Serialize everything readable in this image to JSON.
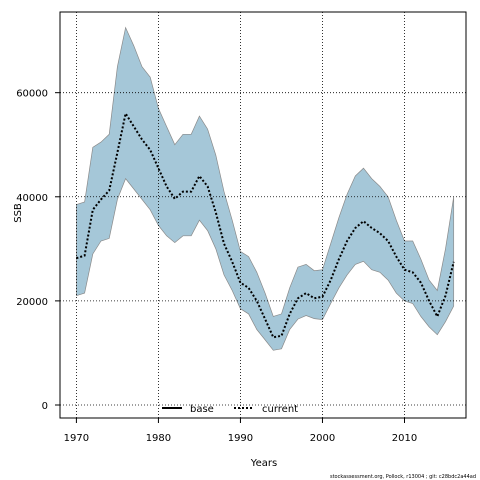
{
  "chart_data": {
    "type": "line",
    "xlabel": "Years",
    "ylabel": "SSB",
    "xlim": [
      1968,
      2017.5
    ],
    "ylim": [
      -2500,
      75500
    ],
    "x_ticks": [
      1970,
      1980,
      1990,
      2000,
      2010
    ],
    "y_ticks": [
      0,
      20000,
      40000,
      60000
    ],
    "grid": true,
    "legend_position": "bottom-center",
    "x": [
      1970,
      1971,
      1972,
      1973,
      1974,
      1975,
      1976,
      1977,
      1978,
      1979,
      1980,
      1981,
      1982,
      1983,
      1984,
      1985,
      1986,
      1987,
      1988,
      1989,
      1990,
      1991,
      1992,
      1993,
      1994,
      1995,
      1996,
      1997,
      1998,
      1999,
      2000,
      2001,
      2002,
      2003,
      2004,
      2005,
      2006,
      2007,
      2008,
      2009,
      2010,
      2011,
      2012,
      2013,
      2014,
      2015,
      2016
    ],
    "series": [
      {
        "name": "base",
        "style": "solid",
        "color": "#000000",
        "values": null
      },
      {
        "name": "current",
        "style": "dotted",
        "color": "#000000",
        "values": [
          28200,
          28700,
          37500,
          39500,
          41200,
          48500,
          56000,
          53500,
          51000,
          49000,
          45500,
          42000,
          39600,
          41000,
          41000,
          44000,
          42000,
          37000,
          31000,
          27500,
          23500,
          22500,
          20000,
          16500,
          13000,
          13300,
          17500,
          20500,
          21500,
          20500,
          20800,
          24000,
          28000,
          31500,
          34000,
          35300,
          34000,
          33000,
          31500,
          28500,
          26000,
          25500,
          23500,
          20000,
          17000,
          21000,
          27500
        ]
      }
    ],
    "confidence_band": {
      "fill_color": "#a5c7d8",
      "edge_color": "#8a8a8a",
      "lower": [
        21000,
        21500,
        29000,
        31500,
        32000,
        39500,
        43500,
        41500,
        39500,
        37500,
        34500,
        32500,
        31200,
        32500,
        32500,
        35500,
        33500,
        30000,
        25000,
        22000,
        18500,
        17500,
        14500,
        12500,
        10500,
        10800,
        14500,
        16500,
        17200,
        16600,
        16400,
        19500,
        22500,
        25000,
        27000,
        27600,
        26000,
        25500,
        24000,
        21500,
        20000,
        19500,
        17000,
        15000,
        13500,
        16000,
        19000
      ],
      "upper": [
        38500,
        39000,
        49500,
        50500,
        52000,
        65000,
        72500,
        69000,
        65000,
        63000,
        57000,
        53500,
        50000,
        52000,
        52000,
        55500,
        53000,
        48000,
        41000,
        35500,
        29500,
        28500,
        25500,
        21500,
        17000,
        17500,
        22500,
        26500,
        27000,
        25800,
        26000,
        31000,
        36000,
        40500,
        44000,
        45500,
        43500,
        42000,
        40000,
        35500,
        31500,
        31500,
        28000,
        24000,
        22000,
        30000,
        40000
      ]
    }
  },
  "footer": {
    "credit": "stockassessment.org, Pollock, r13004 ; git: c28bdc2a44ad"
  }
}
